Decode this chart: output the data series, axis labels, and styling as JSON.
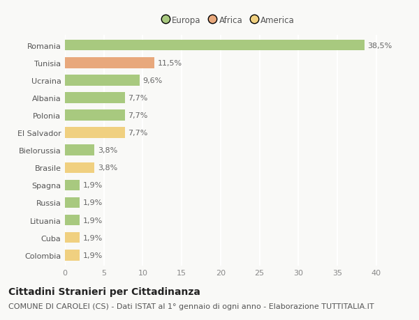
{
  "countries": [
    "Romania",
    "Tunisia",
    "Ucraina",
    "Albania",
    "Polonia",
    "El Salvador",
    "Bielorussia",
    "Brasile",
    "Spagna",
    "Russia",
    "Lituania",
    "Cuba",
    "Colombia"
  ],
  "values": [
    38.5,
    11.5,
    9.6,
    7.7,
    7.7,
    7.7,
    3.8,
    3.8,
    1.9,
    1.9,
    1.9,
    1.9,
    1.9
  ],
  "labels": [
    "38,5%",
    "11,5%",
    "9,6%",
    "7,7%",
    "7,7%",
    "7,7%",
    "3,8%",
    "3,8%",
    "1,9%",
    "1,9%",
    "1,9%",
    "1,9%",
    "1,9%"
  ],
  "continents": [
    "Europa",
    "Africa",
    "Europa",
    "Europa",
    "Europa",
    "America",
    "Europa",
    "America",
    "Europa",
    "Europa",
    "Europa",
    "America",
    "America"
  ],
  "colors": {
    "Europa": "#a8c97f",
    "Africa": "#e8a87c",
    "America": "#f0d080"
  },
  "legend_labels": [
    "Europa",
    "Africa",
    "America"
  ],
  "legend_colors": [
    "#a8c97f",
    "#e8a87c",
    "#f0d080"
  ],
  "xlim": [
    0,
    42
  ],
  "xticks": [
    0,
    5,
    10,
    15,
    20,
    25,
    30,
    35,
    40
  ],
  "title": "Cittadini Stranieri per Cittadinanza",
  "subtitle": "COMUNE DI CAROLEI (CS) - Dati ISTAT al 1° gennaio di ogni anno - Elaborazione TUTTITALIA.IT",
  "bg_color": "#f9f9f7",
  "grid_color": "#ffffff",
  "title_fontsize": 10,
  "subtitle_fontsize": 8,
  "label_fontsize": 8,
  "tick_fontsize": 8,
  "legend_fontsize": 8.5
}
